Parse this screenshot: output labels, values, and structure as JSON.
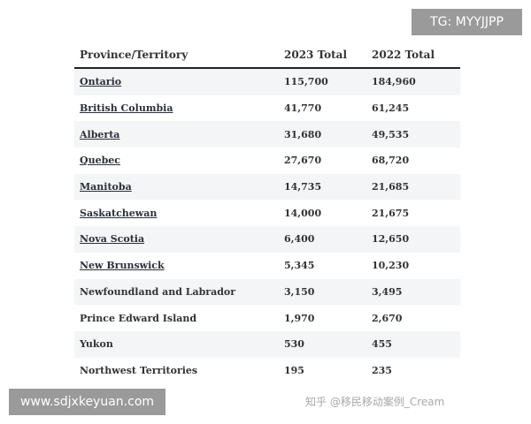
{
  "table": {
    "headers": [
      "Province/Territory",
      "2023 Total",
      "2022 Total"
    ],
    "rows": [
      {
        "name": "Ontario",
        "y2023": "115,700",
        "y2022": "184,960",
        "link": true
      },
      {
        "name": "British Columbia",
        "y2023": "41,770",
        "y2022": "61,245",
        "link": true
      },
      {
        "name": "Alberta",
        "y2023": "31,680",
        "y2022": "49,535",
        "link": true
      },
      {
        "name": "Quebec",
        "y2023": "27,670",
        "y2022": "68,720",
        "link": true
      },
      {
        "name": "Manitoba",
        "y2023": "14,735",
        "y2022": "21,685",
        "link": true
      },
      {
        "name": "Saskatchewan",
        "y2023": "14,000",
        "y2022": "21,675",
        "link": true
      },
      {
        "name": "Nova Scotia",
        "y2023": "6,400",
        "y2022": "12,650",
        "link": true
      },
      {
        "name": "New Brunswick",
        "y2023": "5,345",
        "y2022": "10,230",
        "link": true
      },
      {
        "name": "Newfoundland and Labrador",
        "y2023": "3,150",
        "y2022": "3,495",
        "link": false
      },
      {
        "name": "Prince Edward Island",
        "y2023": "1,970",
        "y2022": "2,670",
        "link": false
      },
      {
        "name": "Yukon",
        "y2023": "530",
        "y2022": "455",
        "link": false
      },
      {
        "name": "Northwest Territories",
        "y2023": "195",
        "y2022": "235",
        "link": false
      }
    ]
  },
  "overlays": {
    "tg": "TG: MYYJJPP",
    "site": "www.sdjxkeyuan.com",
    "watermark": "知乎 @移民移动案例_Cream"
  }
}
